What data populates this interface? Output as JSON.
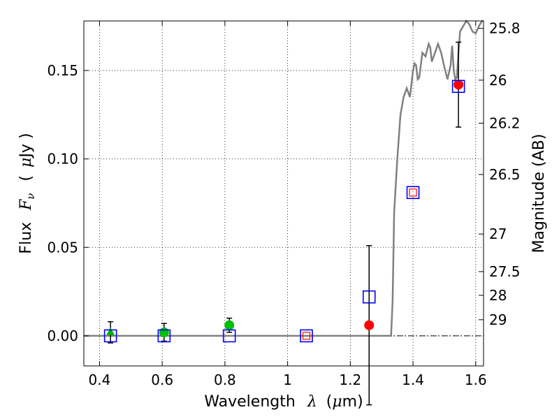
{
  "chart_data": {
    "type": "scatter",
    "xlabel_prefix": "Wavelength",
    "xlabel_lambda": "λ",
    "xlabel_unit_open": "(",
    "xlabel_mu": "μ",
    "xlabel_unit_close": "m)",
    "ylabel_prefix": "Flux",
    "ylabel_f": "F",
    "ylabel_nu": "ν",
    "ylabel_unit_open": "(",
    "ylabel_mu": "μ",
    "ylabel_unit_close": "Jy )",
    "y2label": "Magnitude (AB)",
    "xlim": [
      0.35,
      1.625
    ],
    "ylim": [
      -0.017,
      0.178
    ],
    "grid": true,
    "x_ticks": [
      {
        "value": 0.4,
        "label": "0.4"
      },
      {
        "value": 0.6,
        "label": "0.6"
      },
      {
        "value": 0.8,
        "label": "0.8"
      },
      {
        "value": 1.0,
        "label": "1"
      },
      {
        "value": 1.2,
        "label": "1.2"
      },
      {
        "value": 1.4,
        "label": "1.4"
      },
      {
        "value": 1.6,
        "label": "1.6"
      }
    ],
    "y_ticks": [
      {
        "value": 0.0,
        "label": "0.00"
      },
      {
        "value": 0.05,
        "label": "0.05"
      },
      {
        "value": 0.1,
        "label": "0.10"
      },
      {
        "value": 0.15,
        "label": "0.15"
      }
    ],
    "y2_ticks": [
      {
        "value": 25.8,
        "label": "25.8"
      },
      {
        "value": 26.0,
        "label": "26"
      },
      {
        "value": 26.2,
        "label": "26.2"
      },
      {
        "value": 26.5,
        "label": "26.5"
      },
      {
        "value": 27.0,
        "label": "27"
      },
      {
        "value": 27.5,
        "label": "27.5"
      },
      {
        "value": 28.0,
        "label": "28"
      },
      {
        "value": 29.0,
        "label": "29"
      }
    ],
    "model_sed": {
      "name": "model spectrum",
      "color": "#808080",
      "x": [
        0.35,
        0.6,
        1.0,
        1.2,
        1.33,
        1.335,
        1.34,
        1.35,
        1.36,
        1.37,
        1.38,
        1.39,
        1.4,
        1.405,
        1.41,
        1.415,
        1.42,
        1.43,
        1.44,
        1.45,
        1.455,
        1.46,
        1.47,
        1.48,
        1.49,
        1.5,
        1.51,
        1.52,
        1.525,
        1.53,
        1.535,
        1.54,
        1.545,
        1.55,
        1.56,
        1.57,
        1.58,
        1.59,
        1.6,
        1.61,
        1.62,
        1.625
      ],
      "y": [
        0.0,
        0.0,
        0.0,
        0.0,
        0.0,
        0.02,
        0.07,
        0.1,
        0.125,
        0.135,
        0.14,
        0.135,
        0.15,
        0.154,
        0.153,
        0.145,
        0.146,
        0.16,
        0.158,
        0.165,
        0.163,
        0.155,
        0.16,
        0.165,
        0.16,
        0.152,
        0.145,
        0.153,
        0.164,
        0.15,
        0.145,
        0.146,
        0.16,
        0.172,
        0.175,
        0.178,
        0.176,
        0.172,
        0.171,
        0.175,
        0.178,
        0.178
      ]
    },
    "model_points": {
      "name": "model photometry",
      "marker": "open-square",
      "color": "#0000ff",
      "x": [
        0.435,
        0.606,
        0.814,
        1.06,
        1.26,
        1.4,
        1.545
      ],
      "y": [
        0.0,
        0.0,
        0.0,
        0.0,
        0.022,
        0.081,
        0.141
      ]
    },
    "observed_points": [
      {
        "x": 0.435,
        "y": 0.002,
        "err": 0.006,
        "marker": "triangle",
        "color": "#00b000"
      },
      {
        "x": 0.606,
        "y": 0.002,
        "err": 0.005,
        "marker": "circle",
        "color": "#00c000"
      },
      {
        "x": 0.814,
        "y": 0.006,
        "err": 0.004,
        "marker": "circle",
        "color": "#00c000"
      },
      {
        "x": 1.06,
        "y": 0.0,
        "err": 0.0,
        "marker": "small-square",
        "color": "#ff0000"
      },
      {
        "x": 1.26,
        "y": 0.006,
        "err": 0.045,
        "marker": "circle",
        "color": "#ff0000"
      },
      {
        "x": 1.4,
        "y": 0.081,
        "err": 0.0,
        "marker": "small-square",
        "color": "#ff0000"
      },
      {
        "x": 1.545,
        "y": 0.142,
        "err": 0.024,
        "marker": "circle",
        "color": "#ff0000"
      }
    ]
  }
}
